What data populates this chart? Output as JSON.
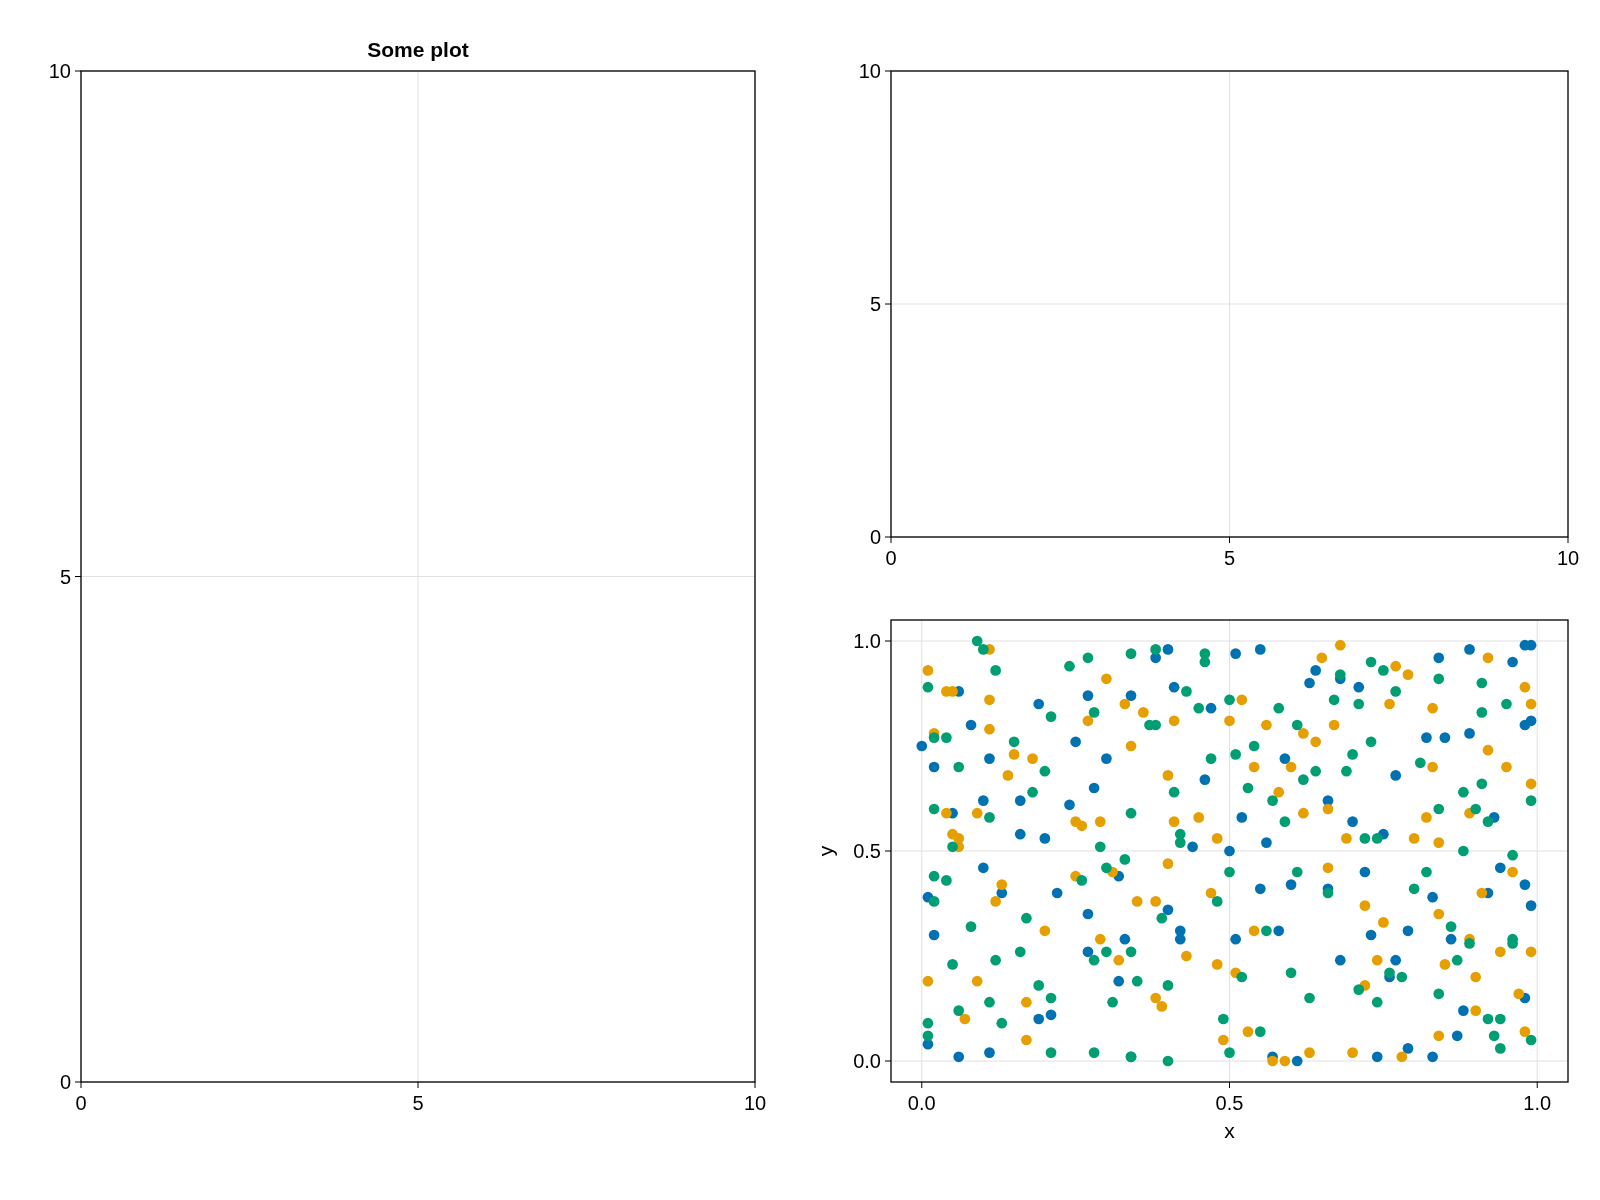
{
  "chart_data": [
    {
      "type": "scatter",
      "title": "Some plot",
      "xlim": [
        0,
        10
      ],
      "ylim": [
        0,
        10
      ],
      "xticks": [
        0,
        5,
        10
      ],
      "yticks": [
        0,
        5,
        10
      ],
      "grid": true
    },
    {
      "type": "scatter",
      "xlim": [
        0,
        10
      ],
      "ylim": [
        0,
        10
      ],
      "xticks": [
        0,
        5,
        10
      ],
      "yticks": [
        0,
        5,
        10
      ],
      "grid": true
    },
    {
      "type": "scatter",
      "xlabel": "x",
      "ylabel": "y",
      "xlim": [
        -0.05,
        1.05
      ],
      "ylim": [
        -0.05,
        1.05
      ],
      "xticks": [
        {
          "value": 0,
          "label": "0.0"
        },
        {
          "value": 0.5,
          "label": "0.5"
        },
        {
          "value": 1,
          "label": "1.0"
        }
      ],
      "yticks": [
        {
          "value": 0,
          "label": "0.0"
        },
        {
          "value": 0.5,
          "label": "0.5"
        },
        {
          "value": 1,
          "label": "1.0"
        }
      ],
      "grid": true,
      "marker": "circle",
      "series": [
        {
          "color": "#0072b2",
          "x": [
            0.0,
            0.01,
            0.02,
            0.02,
            0.01,
            0.06,
            0.08,
            0.05,
            0.06,
            0.11,
            0.11,
            0.1,
            0.1,
            0.13,
            0.16,
            0.16,
            0.19,
            0.2,
            0.22,
            0.19,
            0.21,
            0.24,
            0.25,
            0.27,
            0.28,
            0.27,
            0.27,
            0.3,
            0.32,
            0.32,
            0.33,
            0.34,
            0.34,
            0.38,
            0.4,
            0.4,
            0.41,
            0.42,
            0.42,
            0.44,
            0.46,
            0.47,
            0.5,
            0.51,
            0.51,
            0.52,
            0.55,
            0.55,
            0.56,
            0.57,
            0.58,
            0.59,
            0.6,
            0.61,
            0.63,
            0.64,
            0.66,
            0.66,
            0.68,
            0.68,
            0.7,
            0.71,
            0.72,
            0.73,
            0.74,
            0.75,
            0.76,
            0.77,
            0.77,
            0.79,
            0.79,
            0.82,
            0.83,
            0.83,
            0.84,
            0.85,
            0.86,
            0.87,
            0.88,
            0.89,
            0.89,
            0.92,
            0.93,
            0.94,
            0.96,
            0.98,
            0.98,
            0.99,
            0.99,
            0.98,
            0.99,
            0.98
          ],
          "values": [
            0.75,
            0.39,
            0.7,
            0.3,
            0.04,
            0.88,
            0.8,
            0.59,
            0.01,
            0.02,
            0.72,
            0.62,
            0.46,
            0.4,
            0.62,
            0.54,
            0.85,
            0.53,
            0.4,
            0.1,
            0.11,
            0.61,
            0.76,
            0.87,
            0.65,
            0.35,
            0.26,
            0.72,
            0.19,
            0.44,
            0.29,
            0.01,
            0.87,
            0.96,
            0.98,
            0.36,
            0.89,
            0.31,
            0.29,
            0.51,
            0.67,
            0.84,
            0.5,
            0.97,
            0.29,
            0.58,
            0.98,
            0.41,
            0.52,
            0.01,
            0.31,
            0.72,
            0.42,
            0.0,
            0.9,
            0.93,
            0.62,
            0.41,
            0.24,
            0.91,
            0.57,
            0.89,
            0.45,
            0.3,
            0.01,
            0.54,
            0.2,
            0.24,
            0.68,
            0.31,
            0.03,
            0.77,
            0.01,
            0.39,
            0.96,
            0.77,
            0.29,
            0.06,
            0.12,
            0.98,
            0.78,
            0.4,
            0.58,
            0.46,
            0.95,
            0.8,
            0.99,
            0.99,
            0.81,
            0.42,
            0.37,
            0.15
          ]
        },
        {
          "color": "#e69f00",
          "x": [
            0.01,
            0.02,
            0.01,
            0.04,
            0.05,
            0.04,
            0.05,
            0.06,
            0.06,
            0.09,
            0.07,
            0.09,
            0.11,
            0.11,
            0.11,
            0.12,
            0.13,
            0.14,
            0.15,
            0.17,
            0.17,
            0.18,
            0.2,
            0.25,
            0.25,
            0.26,
            0.27,
            0.29,
            0.29,
            0.3,
            0.31,
            0.32,
            0.33,
            0.34,
            0.35,
            0.36,
            0.38,
            0.38,
            0.39,
            0.4,
            0.4,
            0.41,
            0.41,
            0.43,
            0.45,
            0.47,
            0.48,
            0.48,
            0.49,
            0.5,
            0.51,
            0.52,
            0.53,
            0.54,
            0.54,
            0.56,
            0.57,
            0.58,
            0.59,
            0.6,
            0.62,
            0.62,
            0.63,
            0.64,
            0.65,
            0.66,
            0.66,
            0.67,
            0.68,
            0.69,
            0.7,
            0.72,
            0.72,
            0.74,
            0.75,
            0.76,
            0.77,
            0.78,
            0.79,
            0.8,
            0.82,
            0.83,
            0.83,
            0.84,
            0.84,
            0.85,
            0.84,
            0.89,
            0.89,
            0.9,
            0.9,
            0.91,
            0.92,
            0.92,
            0.94,
            0.95,
            0.96,
            0.97,
            0.98,
            0.98,
            0.99,
            0.99,
            0.99
          ],
          "values": [
            0.93,
            0.78,
            0.19,
            0.88,
            0.88,
            0.59,
            0.54,
            0.53,
            0.51,
            0.59,
            0.1,
            0.19,
            0.98,
            0.86,
            0.79,
            0.38,
            0.42,
            0.68,
            0.73,
            0.14,
            0.05,
            0.72,
            0.31,
            0.57,
            0.44,
            0.56,
            0.81,
            0.29,
            0.57,
            0.91,
            0.45,
            0.24,
            0.85,
            0.75,
            0.38,
            0.83,
            0.38,
            0.15,
            0.13,
            0.68,
            0.47,
            0.81,
            0.57,
            0.25,
            0.58,
            0.4,
            0.53,
            0.23,
            0.05,
            0.81,
            0.21,
            0.86,
            0.07,
            0.7,
            0.31,
            0.8,
            0.0,
            0.64,
            0.0,
            0.7,
            0.59,
            0.78,
            0.02,
            0.76,
            0.96,
            0.46,
            0.6,
            0.8,
            0.99,
            0.53,
            0.02,
            0.37,
            0.18,
            0.24,
            0.33,
            0.85,
            0.94,
            0.01,
            0.92,
            0.53,
            0.58,
            0.84,
            0.7,
            0.52,
            0.35,
            0.23,
            0.06,
            0.59,
            0.29,
            0.2,
            0.12,
            0.4,
            0.96,
            0.74,
            0.26,
            0.7,
            0.45,
            0.16,
            0.07,
            0.89,
            0.85,
            0.66,
            0.26
          ]
        },
        {
          "color": "#009e73",
          "x": [
            0.01,
            0.01,
            0.01,
            0.02,
            0.02,
            0.02,
            0.02,
            0.04,
            0.04,
            0.05,
            0.05,
            0.06,
            0.06,
            0.08,
            0.09,
            0.1,
            0.11,
            0.11,
            0.12,
            0.12,
            0.13,
            0.15,
            0.16,
            0.17,
            0.18,
            0.19,
            0.2,
            0.21,
            0.21,
            0.21,
            0.24,
            0.26,
            0.27,
            0.28,
            0.28,
            0.28,
            0.29,
            0.3,
            0.3,
            0.31,
            0.33,
            0.34,
            0.34,
            0.34,
            0.34,
            0.35,
            0.37,
            0.38,
            0.38,
            0.39,
            0.4,
            0.4,
            0.41,
            0.42,
            0.42,
            0.43,
            0.45,
            0.46,
            0.46,
            0.47,
            0.48,
            0.49,
            0.5,
            0.5,
            0.5,
            0.51,
            0.52,
            0.53,
            0.54,
            0.55,
            0.56,
            0.57,
            0.58,
            0.59,
            0.6,
            0.61,
            0.61,
            0.62,
            0.63,
            0.64,
            0.66,
            0.67,
            0.68,
            0.69,
            0.7,
            0.71,
            0.71,
            0.72,
            0.73,
            0.73,
            0.74,
            0.74,
            0.75,
            0.76,
            0.77,
            0.78,
            0.8,
            0.81,
            0.82,
            0.84,
            0.84,
            0.84,
            0.86,
            0.87,
            0.88,
            0.88,
            0.89,
            0.9,
            0.91,
            0.91,
            0.91,
            0.92,
            0.92,
            0.93,
            0.94,
            0.94,
            0.95,
            0.96,
            0.96,
            0.96,
            0.99,
            0.99
          ],
          "values": [
            0.89,
            0.06,
            0.09,
            0.77,
            0.44,
            0.38,
            0.6,
            0.77,
            0.43,
            0.23,
            0.51,
            0.7,
            0.12,
            0.32,
            1.0,
            0.98,
            0.58,
            0.14,
            0.93,
            0.24,
            0.09,
            0.76,
            0.26,
            0.34,
            0.64,
            0.18,
            0.69,
            0.15,
            0.02,
            0.82,
            0.94,
            0.43,
            0.96,
            0.83,
            0.24,
            0.02,
            0.51,
            0.26,
            0.46,
            0.14,
            0.48,
            0.97,
            0.59,
            0.26,
            0.01,
            0.19,
            0.8,
            0.98,
            0.8,
            0.34,
            0.0,
            0.18,
            0.64,
            0.52,
            0.54,
            0.88,
            0.84,
            0.97,
            0.95,
            0.72,
            0.38,
            0.1,
            0.86,
            0.45,
            0.02,
            0.73,
            0.2,
            0.65,
            0.75,
            0.07,
            0.31,
            0.62,
            0.84,
            0.57,
            0.21,
            0.8,
            0.45,
            0.67,
            0.15,
            0.69,
            0.4,
            0.86,
            0.92,
            0.69,
            0.73,
            0.85,
            0.17,
            0.53,
            0.95,
            0.76,
            0.53,
            0.14,
            0.93,
            0.21,
            0.88,
            0.2,
            0.41,
            0.71,
            0.45,
            0.91,
            0.16,
            0.6,
            0.32,
            0.24,
            0.64,
            0.5,
            0.28,
            0.6,
            0.9,
            0.83,
            0.66,
            0.57,
            0.1,
            0.06,
            0.1,
            0.03,
            0.85,
            0.49,
            0.28,
            0.29,
            0.62,
            0.05
          ]
        }
      ]
    }
  ]
}
